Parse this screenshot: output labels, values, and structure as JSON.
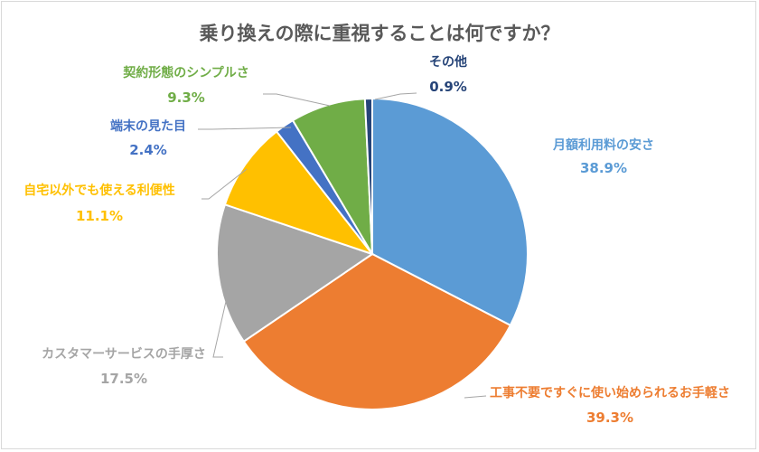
{
  "chart_data": {
    "type": "pie",
    "title": "乗り換えの際に重視することは何ですか？",
    "slices": [
      {
        "name": "月額利用料の安さ",
        "value": 38.9,
        "value_label": "38.9%",
        "color": "#5b9bd5"
      },
      {
        "name": "工事不要ですぐに使い始められるお手軽さ",
        "value": 39.3,
        "value_label": "39.3%",
        "color": "#ed7d31"
      },
      {
        "name": "カスタマーサービスの手厚さ",
        "value": 17.5,
        "value_label": "17.5%",
        "color": "#a5a5a5"
      },
      {
        "name": "自宅以外でも使える利便性",
        "value": 11.1,
        "value_label": "11.1%",
        "color": "#ffc000"
      },
      {
        "name": "端末の見た目",
        "value": 2.4,
        "value_label": "2.4%",
        "color": "#4472c4"
      },
      {
        "name": "契約形態のシンプルさ",
        "value": 9.3,
        "value_label": "9.3%",
        "color": "#70ad47"
      },
      {
        "name": "その他",
        "value": 0.9,
        "value_label": "0.9%",
        "color": "#264478"
      }
    ]
  }
}
